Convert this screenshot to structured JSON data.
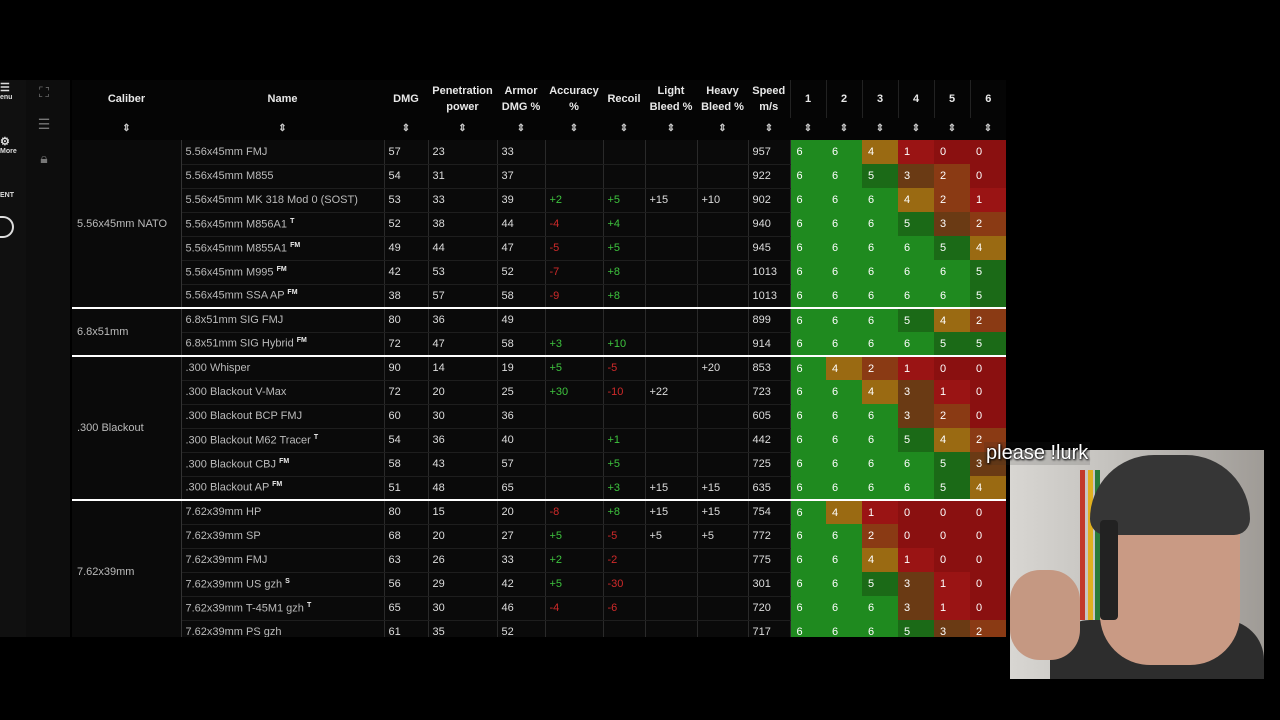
{
  "sidebar": {
    "rail_items": [
      {
        "label": "enu",
        "icon": "hamburger-icon"
      },
      {
        "label": "More",
        "icon": "gear-icon"
      },
      {
        "label": "ENT",
        "icon": ""
      }
    ],
    "tools": [
      "fullscreen-icon",
      "list-icon",
      "lock-icon"
    ]
  },
  "table": {
    "headers": {
      "caliber": "Caliber",
      "name": "Name",
      "dmg": "DMG",
      "pen": "Penetration power",
      "armor_dmg": "Armor DMG %",
      "accuracy": "Accuracy %",
      "recoil": "Recoil",
      "light_bleed": "Light Bleed %",
      "heavy_bleed": "Heavy Bleed %",
      "speed": "Speed m/s",
      "armor_group": "6",
      "armor_classes": [
        "1",
        "2",
        "3",
        "4",
        "5",
        "6"
      ],
      "sort_glyph": "⇕"
    },
    "groups": [
      {
        "caliber": "5.56x45mm NATO",
        "rows": [
          {
            "name": "5.56x45mm FMJ",
            "tag": "",
            "dmg": "57",
            "pen": "23",
            "armor": "33",
            "acc": "",
            "recoil": "",
            "lb": "",
            "hb": "",
            "speed": "957",
            "eff": [
              "6",
              "6",
              "4",
              "1",
              "0",
              "0"
            ]
          },
          {
            "name": "5.56x45mm M855",
            "tag": "",
            "dmg": "54",
            "pen": "31",
            "armor": "37",
            "acc": "",
            "recoil": "",
            "lb": "",
            "hb": "",
            "speed": "922",
            "eff": [
              "6",
              "6",
              "5",
              "3",
              "2",
              "0"
            ]
          },
          {
            "name": "5.56x45mm MK 318 Mod 0 (SOST)",
            "tag": "",
            "dmg": "53",
            "pen": "33",
            "armor": "39",
            "acc": "+2",
            "recoil": "+5",
            "lb": "+15",
            "hb": "+10",
            "speed": "902",
            "eff": [
              "6",
              "6",
              "6",
              "4",
              "2",
              "1"
            ]
          },
          {
            "name": "5.56x45mm M856A1",
            "tag": "T",
            "dmg": "52",
            "pen": "38",
            "armor": "44",
            "acc": "-4",
            "recoil": "+4",
            "lb": "",
            "hb": "",
            "speed": "940",
            "eff": [
              "6",
              "6",
              "6",
              "5",
              "3",
              "2"
            ]
          },
          {
            "name": "5.56x45mm M855A1",
            "tag": "FM",
            "dmg": "49",
            "pen": "44",
            "armor": "47",
            "acc": "-5",
            "recoil": "+5",
            "lb": "",
            "hb": "",
            "speed": "945",
            "eff": [
              "6",
              "6",
              "6",
              "6",
              "5",
              "4"
            ]
          },
          {
            "name": "5.56x45mm M995",
            "tag": "FM",
            "dmg": "42",
            "pen": "53",
            "armor": "52",
            "acc": "-7",
            "recoil": "+8",
            "lb": "",
            "hb": "",
            "speed": "1013",
            "eff": [
              "6",
              "6",
              "6",
              "6",
              "6",
              "5"
            ]
          },
          {
            "name": "5.56x45mm SSA AP",
            "tag": "FM",
            "dmg": "38",
            "pen": "57",
            "armor": "58",
            "acc": "-9",
            "recoil": "+8",
            "lb": "",
            "hb": "",
            "speed": "1013",
            "eff": [
              "6",
              "6",
              "6",
              "6",
              "6",
              "5"
            ]
          }
        ]
      },
      {
        "caliber": "6.8x51mm",
        "rows": [
          {
            "name": "6.8x51mm SIG FMJ",
            "tag": "",
            "dmg": "80",
            "pen": "36",
            "armor": "49",
            "acc": "",
            "recoil": "",
            "lb": "",
            "hb": "",
            "speed": "899",
            "eff": [
              "6",
              "6",
              "6",
              "5",
              "4",
              "2"
            ]
          },
          {
            "name": "6.8x51mm SIG Hybrid",
            "tag": "FM",
            "dmg": "72",
            "pen": "47",
            "armor": "58",
            "acc": "+3",
            "recoil": "+10",
            "lb": "",
            "hb": "",
            "speed": "914",
            "eff": [
              "6",
              "6",
              "6",
              "6",
              "5",
              "5"
            ]
          }
        ]
      },
      {
        "caliber": ".300 Blackout",
        "rows": [
          {
            "name": ".300 Whisper",
            "tag": "",
            "dmg": "90",
            "pen": "14",
            "armor": "19",
            "acc": "+5",
            "recoil": "-5",
            "lb": "",
            "hb": "+20",
            "speed": "853",
            "eff": [
              "6",
              "4",
              "2",
              "1",
              "0",
              "0"
            ]
          },
          {
            "name": ".300 Blackout V-Max",
            "tag": "",
            "dmg": "72",
            "pen": "20",
            "armor": "25",
            "acc": "+30",
            "recoil": "-10",
            "lb": "+22",
            "hb": "",
            "speed": "723",
            "eff": [
              "6",
              "6",
              "4",
              "3",
              "1",
              "0"
            ]
          },
          {
            "name": ".300 Blackout BCP FMJ",
            "tag": "",
            "dmg": "60",
            "pen": "30",
            "armor": "36",
            "acc": "",
            "recoil": "",
            "lb": "",
            "hb": "",
            "speed": "605",
            "eff": [
              "6",
              "6",
              "6",
              "3",
              "2",
              "0"
            ]
          },
          {
            "name": ".300 Blackout M62 Tracer",
            "tag": "T",
            "dmg": "54",
            "pen": "36",
            "armor": "40",
            "acc": "",
            "recoil": "+1",
            "lb": "",
            "hb": "",
            "speed": "442",
            "eff": [
              "6",
              "6",
              "6",
              "5",
              "4",
              "2"
            ]
          },
          {
            "name": ".300 Blackout CBJ",
            "tag": "FM",
            "dmg": "58",
            "pen": "43",
            "armor": "57",
            "acc": "",
            "recoil": "+5",
            "lb": "",
            "hb": "",
            "speed": "725",
            "eff": [
              "6",
              "6",
              "6",
              "6",
              "5",
              "3"
            ]
          },
          {
            "name": ".300 Blackout AP",
            "tag": "FM",
            "dmg": "51",
            "pen": "48",
            "armor": "65",
            "acc": "",
            "recoil": "+3",
            "lb": "+15",
            "hb": "+15",
            "speed": "635",
            "eff": [
              "6",
              "6",
              "6",
              "6",
              "5",
              "4"
            ]
          }
        ]
      },
      {
        "caliber": "7.62x39mm",
        "rows": [
          {
            "name": "7.62x39mm HP",
            "tag": "",
            "dmg": "80",
            "pen": "15",
            "armor": "20",
            "acc": "-8",
            "recoil": "+8",
            "lb": "+15",
            "hb": "+15",
            "speed": "754",
            "eff": [
              "6",
              "4",
              "1",
              "0",
              "0",
              "0"
            ]
          },
          {
            "name": "7.62x39mm SP",
            "tag": "",
            "dmg": "68",
            "pen": "20",
            "armor": "27",
            "acc": "+5",
            "recoil": "-5",
            "lb": "+5",
            "hb": "+5",
            "speed": "772",
            "eff": [
              "6",
              "6",
              "2",
              "0",
              "0",
              "0"
            ]
          },
          {
            "name": "7.62x39mm FMJ",
            "tag": "",
            "dmg": "63",
            "pen": "26",
            "armor": "33",
            "acc": "+2",
            "recoil": "-2",
            "lb": "",
            "hb": "",
            "speed": "775",
            "eff": [
              "6",
              "6",
              "4",
              "1",
              "0",
              "0"
            ]
          },
          {
            "name": "7.62x39mm US gzh",
            "tag": "S",
            "dmg": "56",
            "pen": "29",
            "armor": "42",
            "acc": "+5",
            "recoil": "-30",
            "lb": "",
            "hb": "",
            "speed": "301",
            "eff": [
              "6",
              "6",
              "5",
              "3",
              "1",
              "0"
            ]
          },
          {
            "name": "7.62x39mm T-45M1 gzh",
            "tag": "T",
            "dmg": "65",
            "pen": "30",
            "armor": "46",
            "acc": "-4",
            "recoil": "-6",
            "lb": "",
            "hb": "",
            "speed": "720",
            "eff": [
              "6",
              "6",
              "6",
              "3",
              "1",
              "0"
            ]
          },
          {
            "name": "7.62x39mm PS gzh",
            "tag": "",
            "dmg": "61",
            "pen": "35",
            "armor": "52",
            "acc": "",
            "recoil": "",
            "lb": "",
            "hb": "",
            "speed": "717",
            "eff": [
              "6",
              "6",
              "6",
              "5",
              "3",
              "2"
            ]
          }
        ]
      }
    ],
    "eff_colors": {
      "6": "#1f8a1f",
      "5": "#1b6a17",
      "4": "#9a6a12",
      "3": "#6a3a14",
      "2": "#8a3a14",
      "1": "#9a1414",
      "0": "#8a1010"
    },
    "pos_color": "#3ec43e",
    "neg_color": "#d02a2a"
  },
  "overlay": {
    "chat_text": "please !lurk"
  }
}
